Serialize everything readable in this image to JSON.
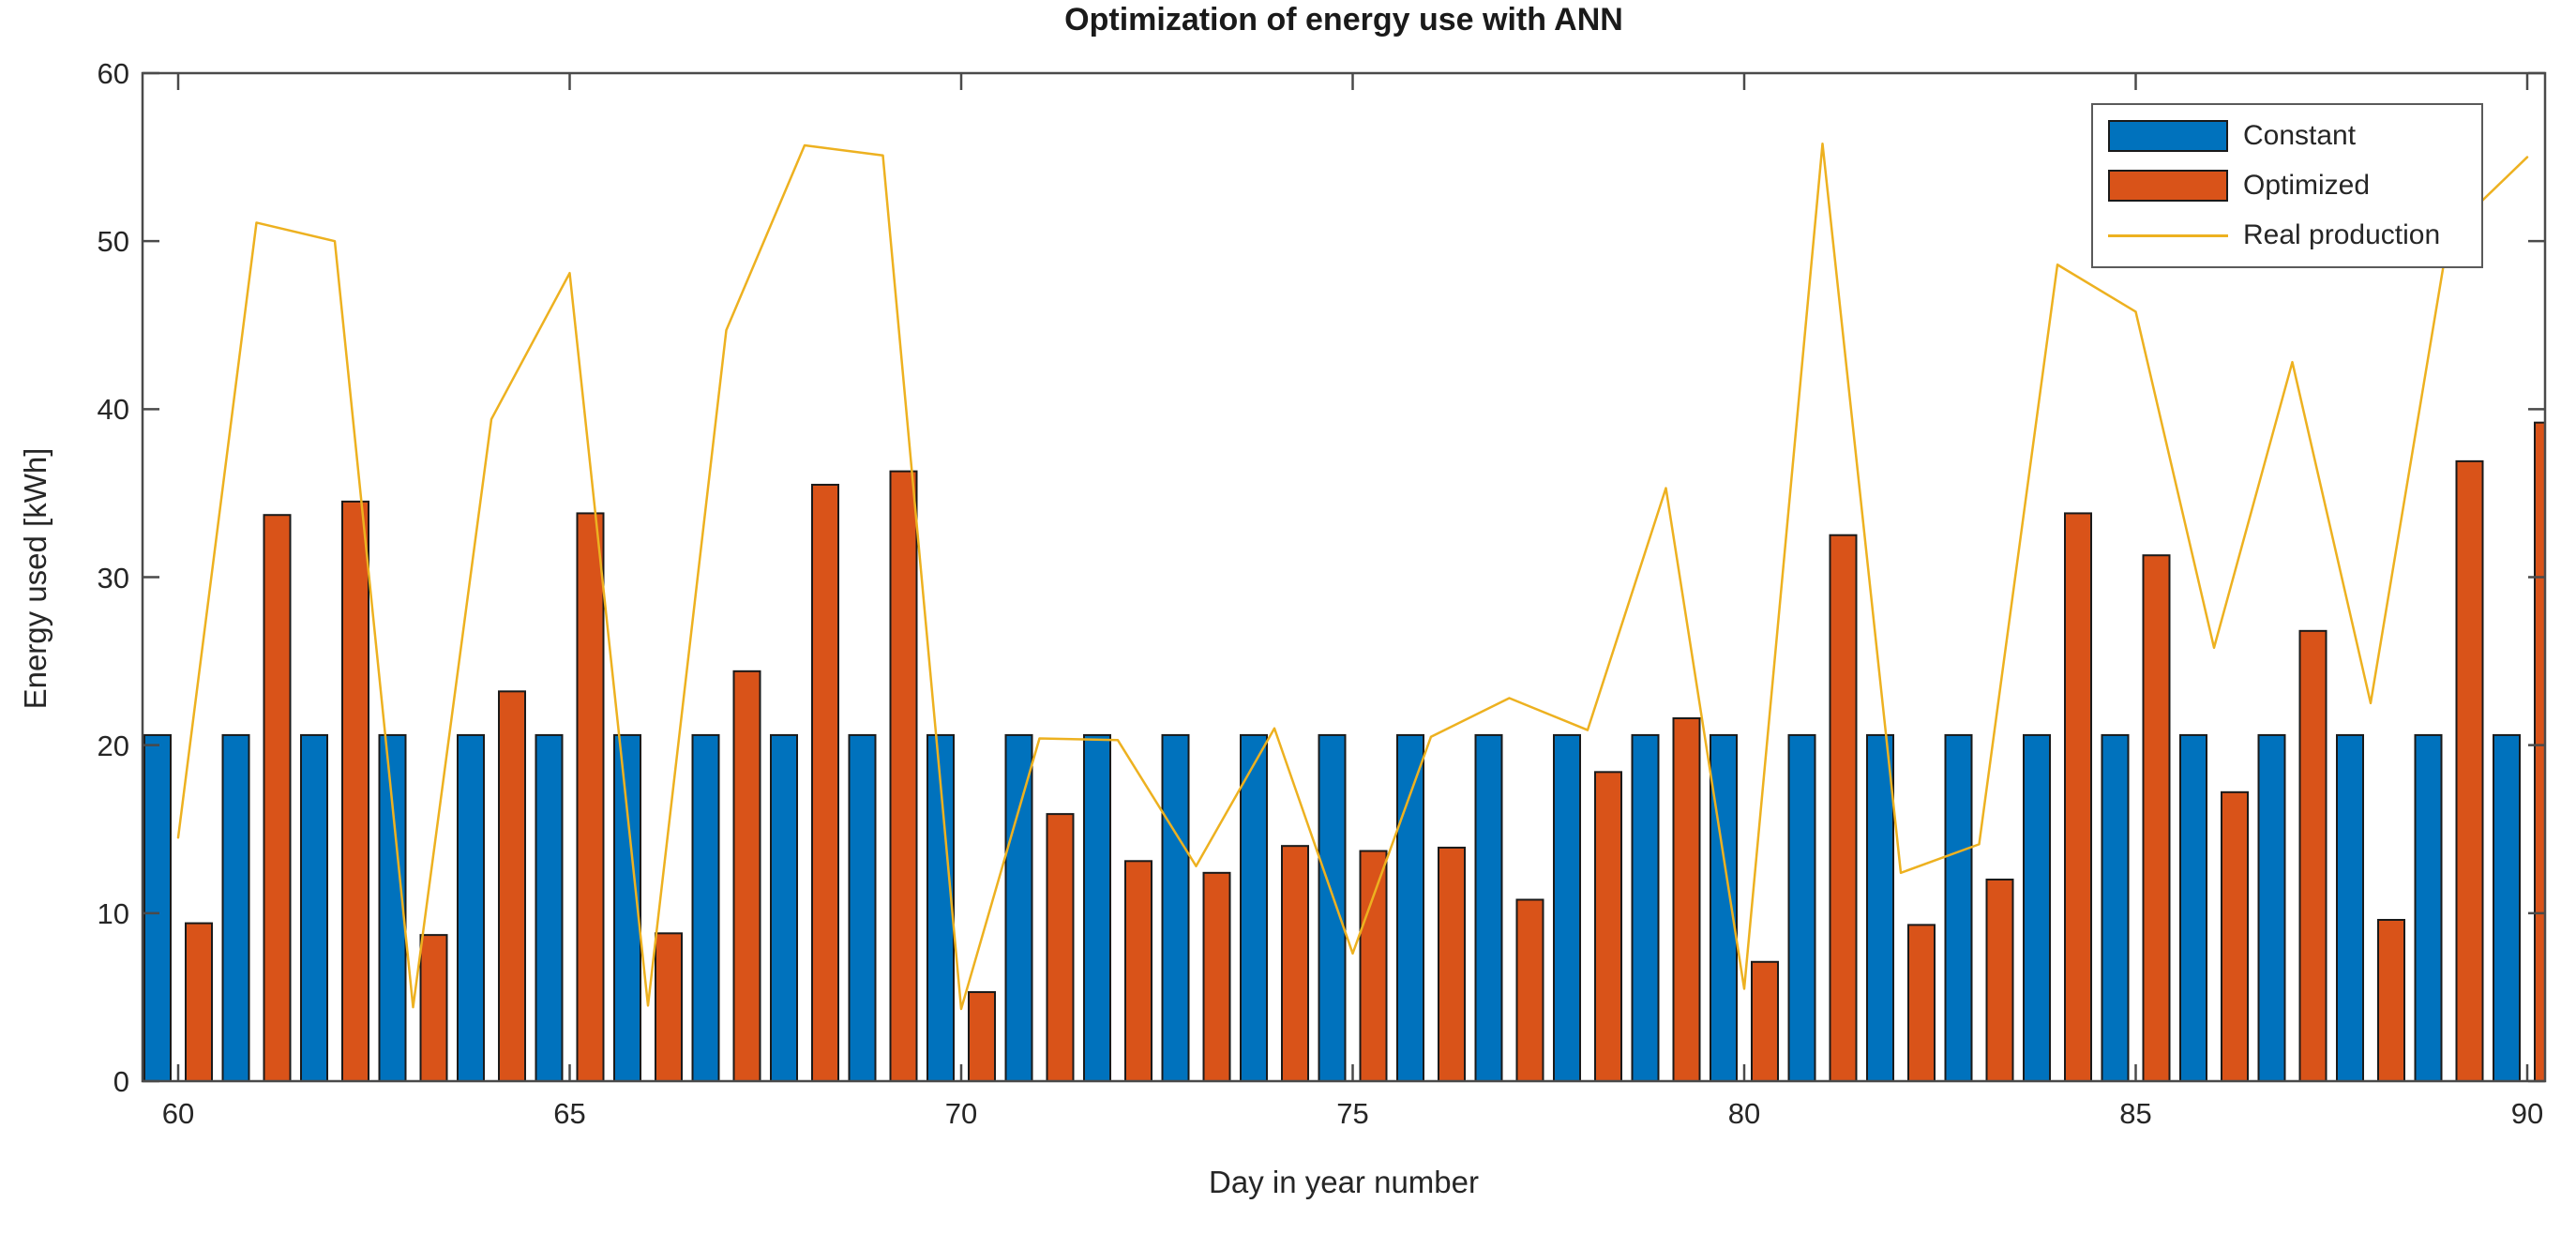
{
  "figure": {
    "title": "Optimization of energy use with ANN",
    "xlabel": "Day in year number",
    "ylabel": "Energy used [kWh]"
  },
  "legend": {
    "items": [
      {
        "label": "Constant",
        "type": "bar",
        "color": "#0072BD"
      },
      {
        "label": "Optimized",
        "type": "bar",
        "color": "#D95319"
      },
      {
        "label": "Real production",
        "type": "line",
        "color": "#EDB120"
      }
    ]
  },
  "chart_data": {
    "type": "bar",
    "title": "Optimization of energy use with ANN",
    "xlabel": "Day in year number",
    "ylabel": "Energy used [kWh]",
    "x": [
      60,
      61,
      62,
      63,
      64,
      65,
      66,
      67,
      68,
      69,
      70,
      71,
      72,
      73,
      74,
      75,
      76,
      77,
      78,
      79,
      80,
      81,
      82,
      83,
      84,
      85,
      86,
      87,
      88,
      89,
      90
    ],
    "series": [
      {
        "name": "Constant",
        "type": "bar",
        "color": "#0072BD",
        "values": [
          20.6,
          20.6,
          20.6,
          20.6,
          20.6,
          20.6,
          20.6,
          20.6,
          20.6,
          20.6,
          20.6,
          20.6,
          20.6,
          20.6,
          20.6,
          20.6,
          20.6,
          20.6,
          20.6,
          20.6,
          20.6,
          20.6,
          20.6,
          20.6,
          20.6,
          20.6,
          20.6,
          20.6,
          20.6,
          20.6,
          20.6
        ]
      },
      {
        "name": "Optimized",
        "type": "bar",
        "color": "#D95319",
        "values": [
          9.4,
          33.7,
          34.5,
          8.7,
          23.2,
          33.8,
          8.8,
          24.4,
          35.5,
          36.3,
          5.3,
          15.9,
          13.1,
          12.4,
          14.0,
          13.7,
          13.9,
          10.8,
          18.4,
          21.6,
          7.1,
          32.5,
          9.3,
          12.0,
          33.8,
          31.3,
          17.2,
          26.8,
          9.6,
          36.9,
          39.2
        ]
      },
      {
        "name": "Real production",
        "type": "line",
        "color": "#EDB120",
        "values": [
          14.5,
          51.1,
          50.0,
          4.4,
          39.4,
          48.1,
          4.5,
          44.7,
          55.7,
          55.1,
          4.3,
          20.4,
          20.3,
          12.8,
          21.0,
          7.6,
          20.5,
          22.8,
          20.9,
          35.3,
          5.5,
          55.8,
          12.4,
          14.1,
          48.6,
          45.8,
          25.8,
          42.8,
          22.5,
          50.5,
          55.0
        ]
      }
    ],
    "ylim": [
      0,
      60
    ],
    "yticks": [
      0,
      10,
      20,
      30,
      40,
      50,
      60
    ],
    "xticks": [
      60,
      65,
      70,
      75,
      80,
      85,
      90
    ],
    "grid": false,
    "legend_position": "top-right",
    "bar_edge_color": "#1a1a1a",
    "axis_color": "#4a4a4a"
  }
}
